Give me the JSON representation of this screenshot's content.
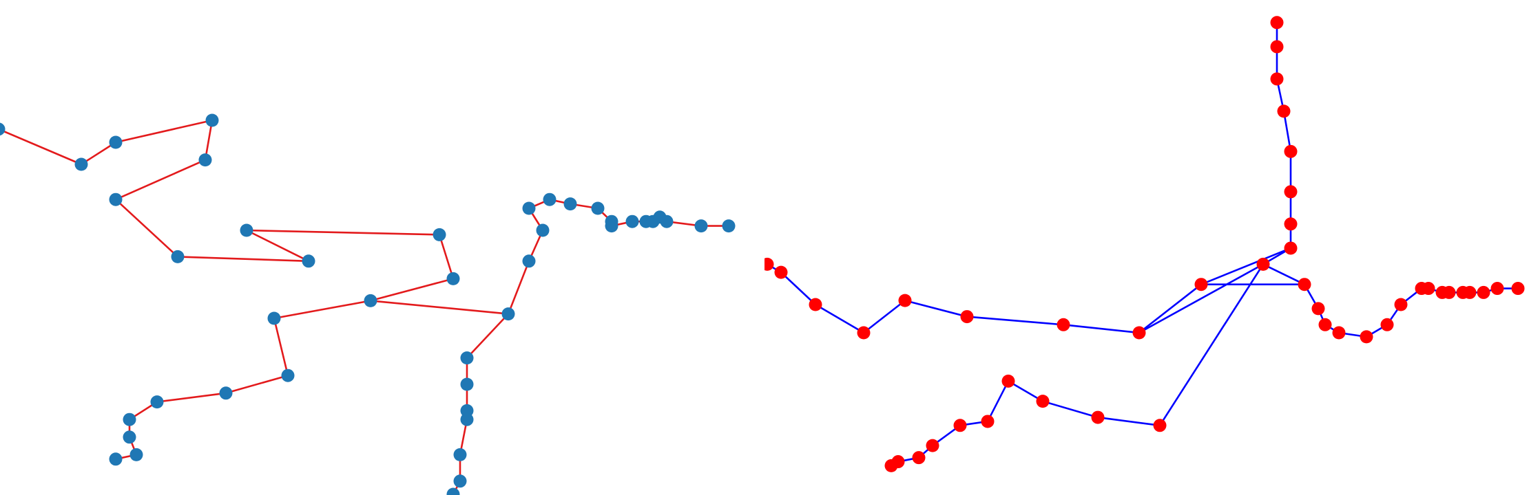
{
  "graphs": [
    {
      "edge_color": "#e31a1c",
      "node_color": "#1f77b4",
      "nodes": [
        [
          -0.05,
          0.22
        ],
        [
          0.07,
          0.3
        ],
        [
          0.12,
          0.25
        ],
        [
          0.26,
          0.2
        ],
        [
          0.25,
          0.29
        ],
        [
          0.12,
          0.38
        ],
        [
          0.21,
          0.51
        ],
        [
          0.4,
          0.52
        ],
        [
          0.31,
          0.45
        ],
        [
          0.59,
          0.46
        ],
        [
          0.61,
          0.56
        ],
        [
          0.49,
          0.61
        ],
        [
          0.35,
          0.65
        ],
        [
          0.37,
          0.78
        ],
        [
          0.28,
          0.82
        ],
        [
          0.18,
          0.84
        ],
        [
          0.14,
          0.88
        ],
        [
          0.14,
          0.92
        ],
        [
          0.15,
          0.96
        ],
        [
          0.12,
          0.97
        ],
        [
          0.69,
          0.64
        ],
        [
          0.63,
          0.74
        ],
        [
          0.63,
          0.8
        ],
        [
          0.63,
          0.86
        ],
        [
          0.63,
          0.88
        ],
        [
          0.62,
          0.96
        ],
        [
          0.62,
          1.02
        ],
        [
          0.61,
          1.05
        ],
        [
          0.72,
          0.52
        ],
        [
          0.74,
          0.45
        ],
        [
          0.72,
          0.4
        ],
        [
          0.75,
          0.38
        ],
        [
          0.78,
          0.39
        ],
        [
          0.82,
          0.4
        ],
        [
          0.84,
          0.43
        ],
        [
          0.84,
          0.44
        ],
        [
          0.87,
          0.43
        ],
        [
          0.89,
          0.43
        ],
        [
          0.9,
          0.43
        ],
        [
          0.91,
          0.42
        ],
        [
          0.92,
          0.43
        ],
        [
          0.97,
          0.44
        ],
        [
          1.01,
          0.44
        ]
      ],
      "edges": [
        [
          0,
          1
        ],
        [
          1,
          2
        ],
        [
          2,
          3
        ],
        [
          3,
          4
        ],
        [
          4,
          5
        ],
        [
          5,
          6
        ],
        [
          6,
          7
        ],
        [
          7,
          8
        ],
        [
          8,
          9
        ],
        [
          9,
          10
        ],
        [
          10,
          11
        ],
        [
          11,
          12
        ],
        [
          12,
          13
        ],
        [
          13,
          14
        ],
        [
          14,
          15
        ],
        [
          15,
          16
        ],
        [
          16,
          17
        ],
        [
          17,
          18
        ],
        [
          18,
          19
        ],
        [
          11,
          20
        ],
        [
          20,
          21
        ],
        [
          21,
          22
        ],
        [
          22,
          23
        ],
        [
          23,
          24
        ],
        [
          24,
          25
        ],
        [
          25,
          26
        ],
        [
          26,
          27
        ],
        [
          20,
          28
        ],
        [
          28,
          29
        ],
        [
          29,
          30
        ],
        [
          30,
          31
        ],
        [
          31,
          32
        ],
        [
          32,
          33
        ],
        [
          33,
          34
        ],
        [
          34,
          35
        ],
        [
          35,
          36
        ],
        [
          36,
          37
        ],
        [
          37,
          38
        ],
        [
          38,
          39
        ],
        [
          39,
          40
        ],
        [
          40,
          41
        ],
        [
          41,
          42
        ]
      ]
    },
    {
      "edge_color": "#0000ff",
      "node_color": "#ff0000",
      "nodes": [
        [
          -0.06,
          0.6
        ],
        [
          -0.04,
          0.58
        ],
        [
          0.01,
          0.5
        ],
        [
          0.08,
          0.43
        ],
        [
          0.14,
          0.51
        ],
        [
          0.23,
          0.47
        ],
        [
          0.37,
          0.45
        ],
        [
          0.48,
          0.43
        ],
        [
          0.57,
          0.55
        ],
        [
          0.66,
          0.6
        ],
        [
          0.7,
          0.64
        ],
        [
          0.7,
          0.7
        ],
        [
          0.7,
          0.78
        ],
        [
          0.7,
          0.88
        ],
        [
          0.69,
          0.98
        ],
        [
          0.68,
          1.06
        ],
        [
          0.68,
          1.14
        ],
        [
          0.68,
          1.2
        ],
        [
          0.51,
          0.2
        ],
        [
          0.42,
          0.22
        ],
        [
          0.34,
          0.26
        ],
        [
          0.29,
          0.31
        ],
        [
          0.26,
          0.21
        ],
        [
          0.22,
          0.2
        ],
        [
          0.18,
          0.15
        ],
        [
          0.16,
          0.12
        ],
        [
          0.13,
          0.11
        ],
        [
          0.12,
          0.1
        ],
        [
          0.72,
          0.55
        ],
        [
          0.74,
          0.49
        ],
        [
          0.75,
          0.45
        ],
        [
          0.77,
          0.43
        ],
        [
          0.81,
          0.42
        ],
        [
          0.84,
          0.45
        ],
        [
          0.86,
          0.5
        ],
        [
          0.89,
          0.54
        ],
        [
          0.9,
          0.54
        ],
        [
          0.92,
          0.53
        ],
        [
          0.93,
          0.53
        ],
        [
          0.95,
          0.53
        ],
        [
          0.96,
          0.53
        ],
        [
          0.98,
          0.53
        ],
        [
          1.0,
          0.54
        ],
        [
          1.03,
          0.54
        ]
      ],
      "edges": [
        [
          0,
          1
        ],
        [
          1,
          2
        ],
        [
          2,
          3
        ],
        [
          3,
          4
        ],
        [
          4,
          5
        ],
        [
          5,
          6
        ],
        [
          6,
          7
        ],
        [
          7,
          8
        ],
        [
          8,
          10
        ],
        [
          7,
          9
        ],
        [
          9,
          10
        ],
        [
          10,
          11
        ],
        [
          11,
          12
        ],
        [
          12,
          13
        ],
        [
          13,
          14
        ],
        [
          14,
          15
        ],
        [
          15,
          16
        ],
        [
          16,
          17
        ],
        [
          9,
          18
        ],
        [
          18,
          19
        ],
        [
          19,
          20
        ],
        [
          20,
          21
        ],
        [
          21,
          22
        ],
        [
          22,
          23
        ],
        [
          23,
          24
        ],
        [
          24,
          25
        ],
        [
          25,
          26
        ],
        [
          26,
          27
        ],
        [
          8,
          28
        ],
        [
          9,
          28
        ],
        [
          28,
          29
        ],
        [
          29,
          30
        ],
        [
          30,
          31
        ],
        [
          31,
          32
        ],
        [
          32,
          33
        ],
        [
          33,
          34
        ],
        [
          34,
          35
        ],
        [
          35,
          36
        ],
        [
          36,
          37
        ],
        [
          37,
          38
        ],
        [
          38,
          39
        ],
        [
          39,
          40
        ],
        [
          40,
          41
        ],
        [
          41,
          42
        ],
        [
          42,
          43
        ]
      ]
    }
  ]
}
